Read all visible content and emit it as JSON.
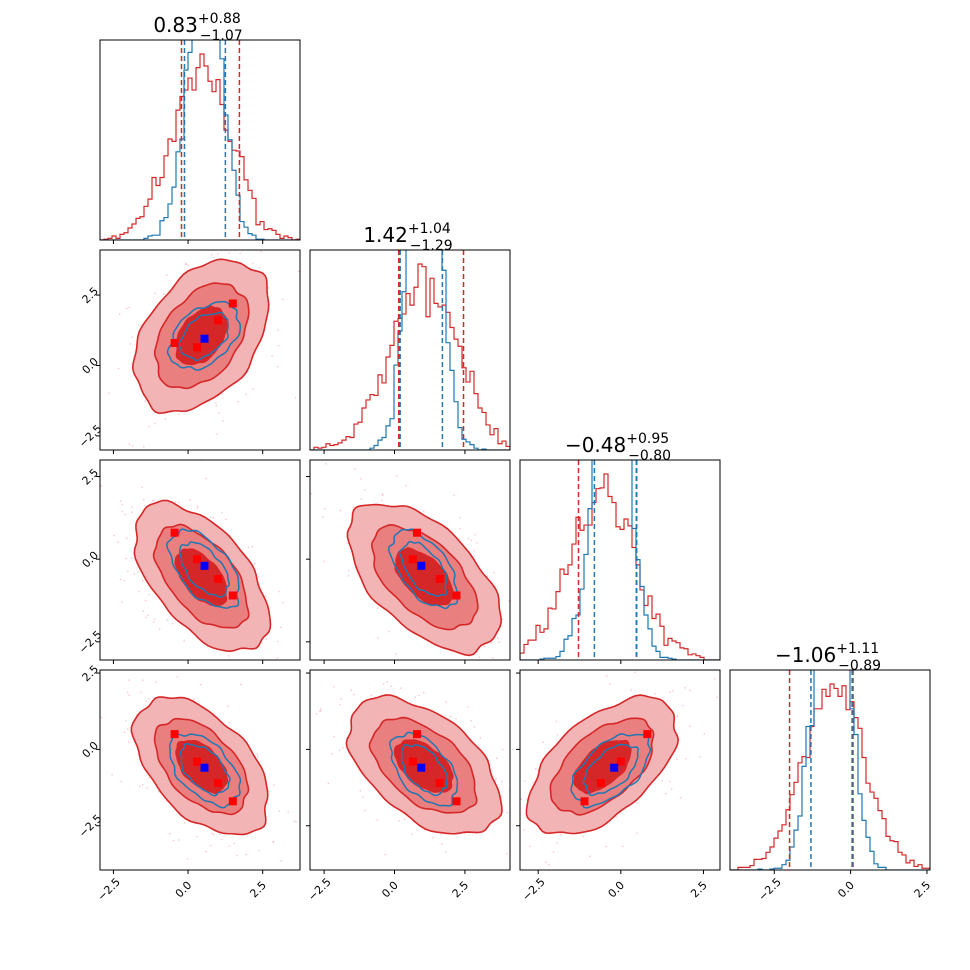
{
  "chart_data": {
    "type": "corner",
    "n_params": 4,
    "ticks": [
      -2.5,
      0.0,
      2.5
    ],
    "tick_labels": [
      "−2.5",
      "0.0",
      "2.5"
    ],
    "ranges": [
      [
        -2.95,
        3.75
      ],
      [
        -3.0,
        4.1
      ],
      [
        -3.05,
        3.0
      ],
      [
        -3.95,
        2.6
      ]
    ],
    "colors": {
      "series_a": "#d62728",
      "series_b": "#1f77b4",
      "marker_a": "#ff0000",
      "marker_b": "#0000ff",
      "fill_outer": "#f2b4b4",
      "fill_mid": "#ea7f7f",
      "fill_inner": "#d62728"
    },
    "titles": [
      {
        "value": "0.83",
        "plus": "+0.88",
        "minus": "−1.07"
      },
      {
        "value": "1.42",
        "plus": "+1.04",
        "minus": "−1.29"
      },
      {
        "value": "−0.48",
        "plus": "+0.95",
        "minus": "−0.80"
      },
      {
        "value": "−1.06",
        "plus": "+1.11",
        "minus": "−0.89"
      }
    ],
    "series": [
      {
        "name": "",
        "color": "#d62728",
        "means": [
          0.45,
          1.05,
          -0.55,
          -0.55
        ],
        "sds": [
          1.0,
          1.2,
          1.0,
          1.0
        ],
        "quantiles": [
          [
            -0.22,
            1.72
          ],
          [
            0.15,
            2.45
          ],
          [
            -1.28,
            0.47
          ],
          [
            -2.0,
            0.05
          ]
        ],
        "corr": [
          [
            1,
            0.4,
            -0.55,
            -0.5
          ],
          [
            0.4,
            1,
            -0.55,
            -0.5
          ],
          [
            -0.55,
            -0.55,
            1,
            0.55
          ],
          [
            -0.5,
            -0.5,
            0.55,
            1
          ]
        ]
      },
      {
        "name": "",
        "color": "#1f77b4",
        "means": [
          0.55,
          1.05,
          -0.3,
          -0.65
        ],
        "sds": [
          0.55,
          0.55,
          0.55,
          0.55
        ],
        "quantiles": [
          [
            -0.12,
            1.25
          ],
          [
            0.2,
            1.7
          ],
          [
            -0.8,
            0.48
          ],
          [
            -1.3,
            0.08
          ]
        ],
        "corr": [
          [
            1,
            0.4,
            -0.55,
            -0.5
          ],
          [
            0.4,
            1,
            -0.55,
            -0.5
          ],
          [
            -0.55,
            -0.55,
            1,
            0.55
          ],
          [
            -0.5,
            -0.5,
            0.55,
            1
          ]
        ]
      }
    ],
    "markers": {
      "red_points": [
        [
          -0.45,
          0.8,
          0.8,
          0.5
        ],
        [
          0.3,
          0.65,
          0.0,
          -0.4
        ],
        [
          1.0,
          1.6,
          -0.6,
          -1.1
        ],
        [
          1.5,
          2.2,
          -1.1,
          -1.7
        ]
      ],
      "blue_point": [
        0.55,
        0.95,
        -0.2,
        -0.6
      ]
    }
  }
}
